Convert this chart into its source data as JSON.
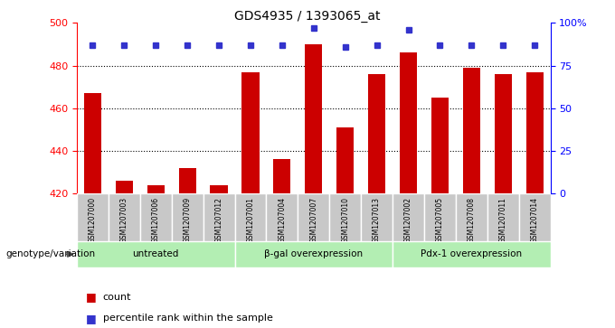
{
  "title": "GDS4935 / 1393065_at",
  "samples": [
    "GSM1207000",
    "GSM1207003",
    "GSM1207006",
    "GSM1207009",
    "GSM1207012",
    "GSM1207001",
    "GSM1207004",
    "GSM1207007",
    "GSM1207010",
    "GSM1207013",
    "GSM1207002",
    "GSM1207005",
    "GSM1207008",
    "GSM1207011",
    "GSM1207014"
  ],
  "counts": [
    467,
    426,
    424,
    432,
    424,
    477,
    436,
    490,
    451,
    476,
    486,
    465,
    479,
    476,
    477
  ],
  "percentile_left": [
    87,
    87,
    87,
    87,
    87,
    87,
    87,
    97,
    86,
    87,
    96,
    87,
    87,
    87,
    87
  ],
  "groups": [
    {
      "label": "untreated",
      "start": 0,
      "end": 5
    },
    {
      "label": "β-gal overexpression",
      "start": 5,
      "end": 10
    },
    {
      "label": "Pdx-1 overexpression",
      "start": 10,
      "end": 15
    }
  ],
  "bar_color": "#cc0000",
  "dot_color": "#3333cc",
  "group_bg": "#b3eeb3",
  "sample_bg": "#c8c8c8",
  "plot_bg": "#ffffff",
  "ylim_left": [
    420,
    500
  ],
  "ylim_right": [
    0,
    100
  ],
  "yticks_left": [
    420,
    440,
    460,
    480,
    500
  ],
  "yticks_right": [
    0,
    25,
    50,
    75,
    100
  ],
  "ylabel_right_labels": [
    "0",
    "25",
    "50",
    "75",
    "100%"
  ],
  "grid_values": [
    440,
    460,
    480
  ],
  "legend_count_label": "count",
  "legend_pct_label": "percentile rank within the sample",
  "genotype_label": "genotype/variation"
}
